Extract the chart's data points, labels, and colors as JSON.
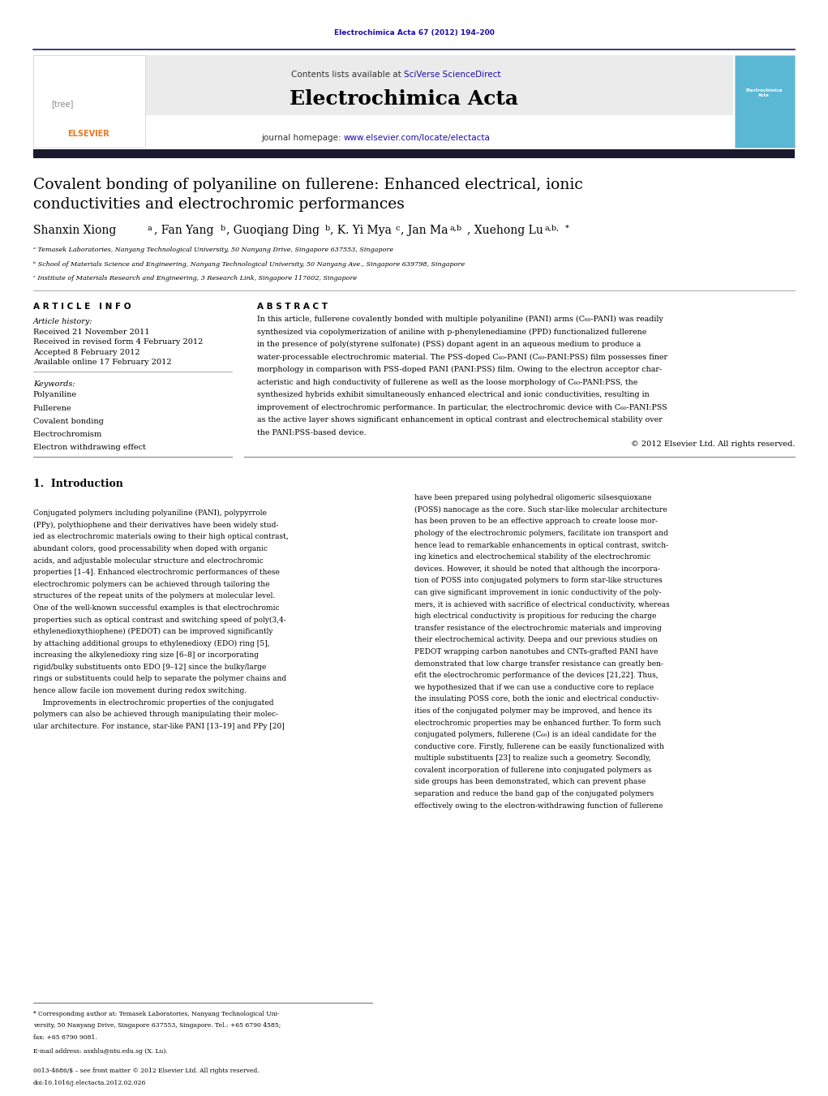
{
  "page_width": 10.21,
  "page_height": 13.51,
  "bg_color": "#ffffff",
  "top_journal_ref": "Electrochimica Acta 67 (2012) 194–200",
  "top_journal_ref_color": "#1a0dab",
  "header_bg": "#e8e8e8",
  "header_contents_text": "Contents lists available at ",
  "header_sciverse": "SciVerse ScienceDirect",
  "header_sciverse_color": "#1a0dab",
  "journal_name": "Electrochimica Acta",
  "journal_homepage_text": "journal homepage: ",
  "journal_url": "www.elsevier.com/locate/electacta",
  "journal_url_color": "#1a0dab",
  "dark_bar_color": "#1a1a2e",
  "article_title_line1": "Covalent bonding of polyaniline on fullerene: Enhanced electrical, ionic",
  "article_title_line2": "conductivities and electrochromic performances",
  "affil_a": "ᵃ Temasek Laboratories, Nanyang Technological University, 50 Nanyang Drive, Singapore 637553, Singapore",
  "affil_b": "ᵇ School of Materials Science and Engineering, Nanyang Technological University, 50 Nanyang Ave., Singapore 639798, Singapore",
  "affil_c": "ᶜ Institute of Materials Research and Engineering, 3 Research Link, Singapore 117602, Singapore",
  "article_info_header": "A R T I C L E   I N F O",
  "abstract_header": "A B S T R A C T",
  "article_history_label": "Article history:",
  "received_text": "Received 21 November 2011",
  "revised_text": "Received in revised form 4 February 2012",
  "accepted_text": "Accepted 8 February 2012",
  "available_text": "Available online 17 February 2012",
  "keywords_label": "Keywords:",
  "keyword1": "Polyaniline",
  "keyword2": "Fullerene",
  "keyword3": "Covalent bonding",
  "keyword4": "Electrochromism",
  "keyword5": "Electron withdrawing effect",
  "abstract_text": "In this article, fullerene covalently bonded with multiple polyaniline (PANI) arms (C₆₀-PANI) was readily\nsynthesized via copolymerization of aniline with p-phenylenediamine (PPD) functionalized fullerene\nin the presence of poly(styrene sulfonate) (PSS) dopant agent in an aqueous medium to produce a\nwater-processable electrochromic material. The PSS-doped C₆₀-PANI (C₆₀-PANI:PSS) film possesses finer\nmorphology in comparison with PSS-doped PANI (PANI:PSS) film. Owing to the electron acceptor char-\nacteristic and high conductivity of fullerene as well as the loose morphology of C₆₀-PANI:PSS, the\nsynthesized hybrids exhibit simultaneously enhanced electrical and ionic conductivities, resulting in\nimprovement of electrochromic performance. In particular, the electrochromic device with C₆₀-PANI:PSS\nas the active layer shows significant enhancement in optical contrast and electrochemical stability over\nthe PANI:PSS-based device.",
  "copyright_text": "© 2012 Elsevier Ltd. All rights reserved.",
  "intro_header": "1.  Introduction",
  "intro_col1": "Conjugated polymers including polyaniline (PANI), polypyrrole\n(PPy), polythiophene and their derivatives have been widely stud-\nied as electrochromic materials owing to their high optical contrast,\nabundant colors, good processability when doped with organic\nacids, and adjustable molecular structure and electrochromic\nproperties [1–4]. Enhanced electrochromic performances of these\nelectrochromic polymers can be achieved through tailoring the\nstructures of the repeat units of the polymers at molecular level.\nOne of the well-known successful examples is that electrochromic\nproperties such as optical contrast and switching speed of poly(3,4-\nethylenedioxythiophene) (PEDOT) can be improved significantly\nby attaching additional groups to ethylenedioxy (EDO) ring [5],\nincreasing the alkylenedioxy ring size [6–8] or incorporating\nrigid/bulky substituents onto EDO [9–12] since the bulky/large\nrings or substituents could help to separate the polymer chains and\nhence allow facile ion movement during redox switching.\n    Improvements in electrochromic properties of the conjugated\npolymers can also be achieved through manipulating their molec-\nular architecture. For instance, star-like PANI [13–19] and PPy [20]",
  "intro_col2": "have been prepared using polyhedral oligomeric silsesquioxane\n(POSS) nanocage as the core. Such star-like molecular architecture\nhas been proven to be an effective approach to create loose mor-\nphology of the electrochromic polymers, facilitate ion transport and\nhence lead to remarkable enhancements in optical contrast, switch-\ning kinetics and electrochemical stability of the electrochromic\ndevices. However, it should be noted that although the incorpora-\ntion of POSS into conjugated polymers to form star-like structures\ncan give significant improvement in ionic conductivity of the poly-\nmers, it is achieved with sacrifice of electrical conductivity, whereas\nhigh electrical conductivity is propitious for reducing the charge\ntransfer resistance of the electrochromic materials and improving\ntheir electrochemical activity. Deepa and our previous studies on\nPEDOT wrapping carbon nanotubes and CNTs-grafted PANI have\ndemonstrated that low charge transfer resistance can greatly ben-\nefit the electrochromic performance of the devices [21,22]. Thus,\nwe hypothesized that if we can use a conductive core to replace\nthe insulating POSS core, both the ionic and electrical conductiv-\nities of the conjugated polymer may be improved, and hence its\nelectrochromic properties may be enhanced further. To form such\nconjugated polymers, fullerene (C₆₀) is an ideal candidate for the\nconductive core. Firstly, fullerene can be easily functionalized with\nmultiple substituents [23] to realize such a geometry. Secondly,\ncovalent incorporation of fullerene into conjugated polymers as\nside groups has been demonstrated, which can prevent phase\nseparation and reduce the band gap of the conjugated polymers\neffectively owing to the electron-withdrawing function of fullerene",
  "footnote_star_line1": "* Corresponding author at: Temasek Laboratories, Nanyang Technological Uni-",
  "footnote_star_line2": "versity, 50 Nanyang Drive, Singapore 637553, Singapore. Tel.: +65 6790 4585;",
  "footnote_star_line3": "fax: +65 6790 9081.",
  "footnote_email": "E-mail address: asxhlu@ntu.edu.sg (X. Lu).",
  "footnote_issn_line1": "0013-4686/$ – see front matter © 2012 Elsevier Ltd. All rights reserved.",
  "footnote_issn_line2": "doi:10.1016/j.electacta.2012.02.026"
}
